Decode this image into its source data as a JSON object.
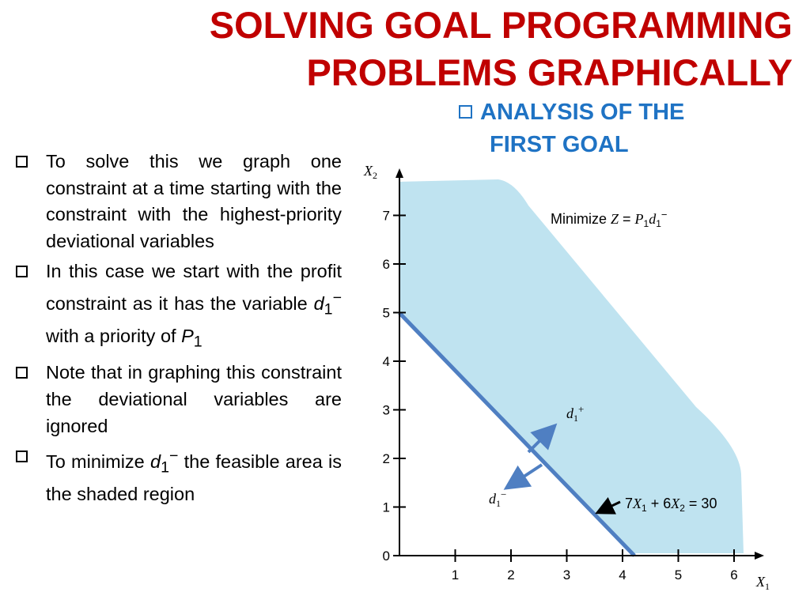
{
  "title": {
    "line1": "SOLVING GOAL PROGRAMMING",
    "line2": "PROBLEMS GRAPHICALLY"
  },
  "section": {
    "line1": "ANALYSIS OF THE",
    "line2": "FIRST GOAL"
  },
  "bullets": [
    {
      "pre": "To solve this we graph one constraint at a time starting with the constraint with the highest-priority deviational variables"
    },
    {
      "pre": "In this case we start with the profit constraint as it has the variable ",
      "var": "d",
      "sub": "1",
      "sup": "−",
      "post": " with a priority of ",
      "var2": "P",
      "sub2": "1"
    },
    {
      "pre": "Note that in graphing this constraint the deviational variables are ignored"
    },
    {
      "pre": "To minimize ",
      "var": "d",
      "sub": "1",
      "sup": "−",
      "post": " the feasible area is the shaded region"
    }
  ],
  "diagram": {
    "x_axis_name": "X",
    "x_axis_sub": "1",
    "y_axis_name": "X",
    "y_axis_sub": "2",
    "x_ticks": [
      "1",
      "2",
      "3",
      "4",
      "5",
      "6"
    ],
    "y_ticks": [
      "0",
      "1",
      "2",
      "3",
      "4",
      "5",
      "6",
      "7"
    ],
    "objective": {
      "prefix": "Minimize ",
      "z": "Z",
      "eq": " = ",
      "p": "P",
      "p_sub": "1",
      "d": "d",
      "d_sub": "1",
      "d_sup": "−"
    },
    "constraint": {
      "c1": "7",
      "x1": "X",
      "x1_sub": "1",
      "plus": " + 6",
      "x2": "X",
      "x2_sub": "2",
      "rhs": " = 30"
    },
    "d_plus": {
      "d": "d",
      "sub": "1",
      "sup": "+"
    },
    "d_minus": {
      "d": "d",
      "sub": "1",
      "sup": "−"
    },
    "colors": {
      "shade": "#bfe3f0",
      "line": "#4f7fc2",
      "title": "#c00000",
      "goal": "#1f73c4"
    }
  },
  "chart_data": {
    "type": "area",
    "x": [
      0,
      4.2857
    ],
    "values": [
      5,
      0
    ],
    "xlabel": "X1",
    "ylabel": "X2",
    "xlim": [
      0,
      6
    ],
    "ylim": [
      0,
      7
    ],
    "annotations": [
      "Minimize Z = P1d1−",
      "7X1 + 6X2 = 30",
      "d1+",
      "d1−"
    ]
  }
}
